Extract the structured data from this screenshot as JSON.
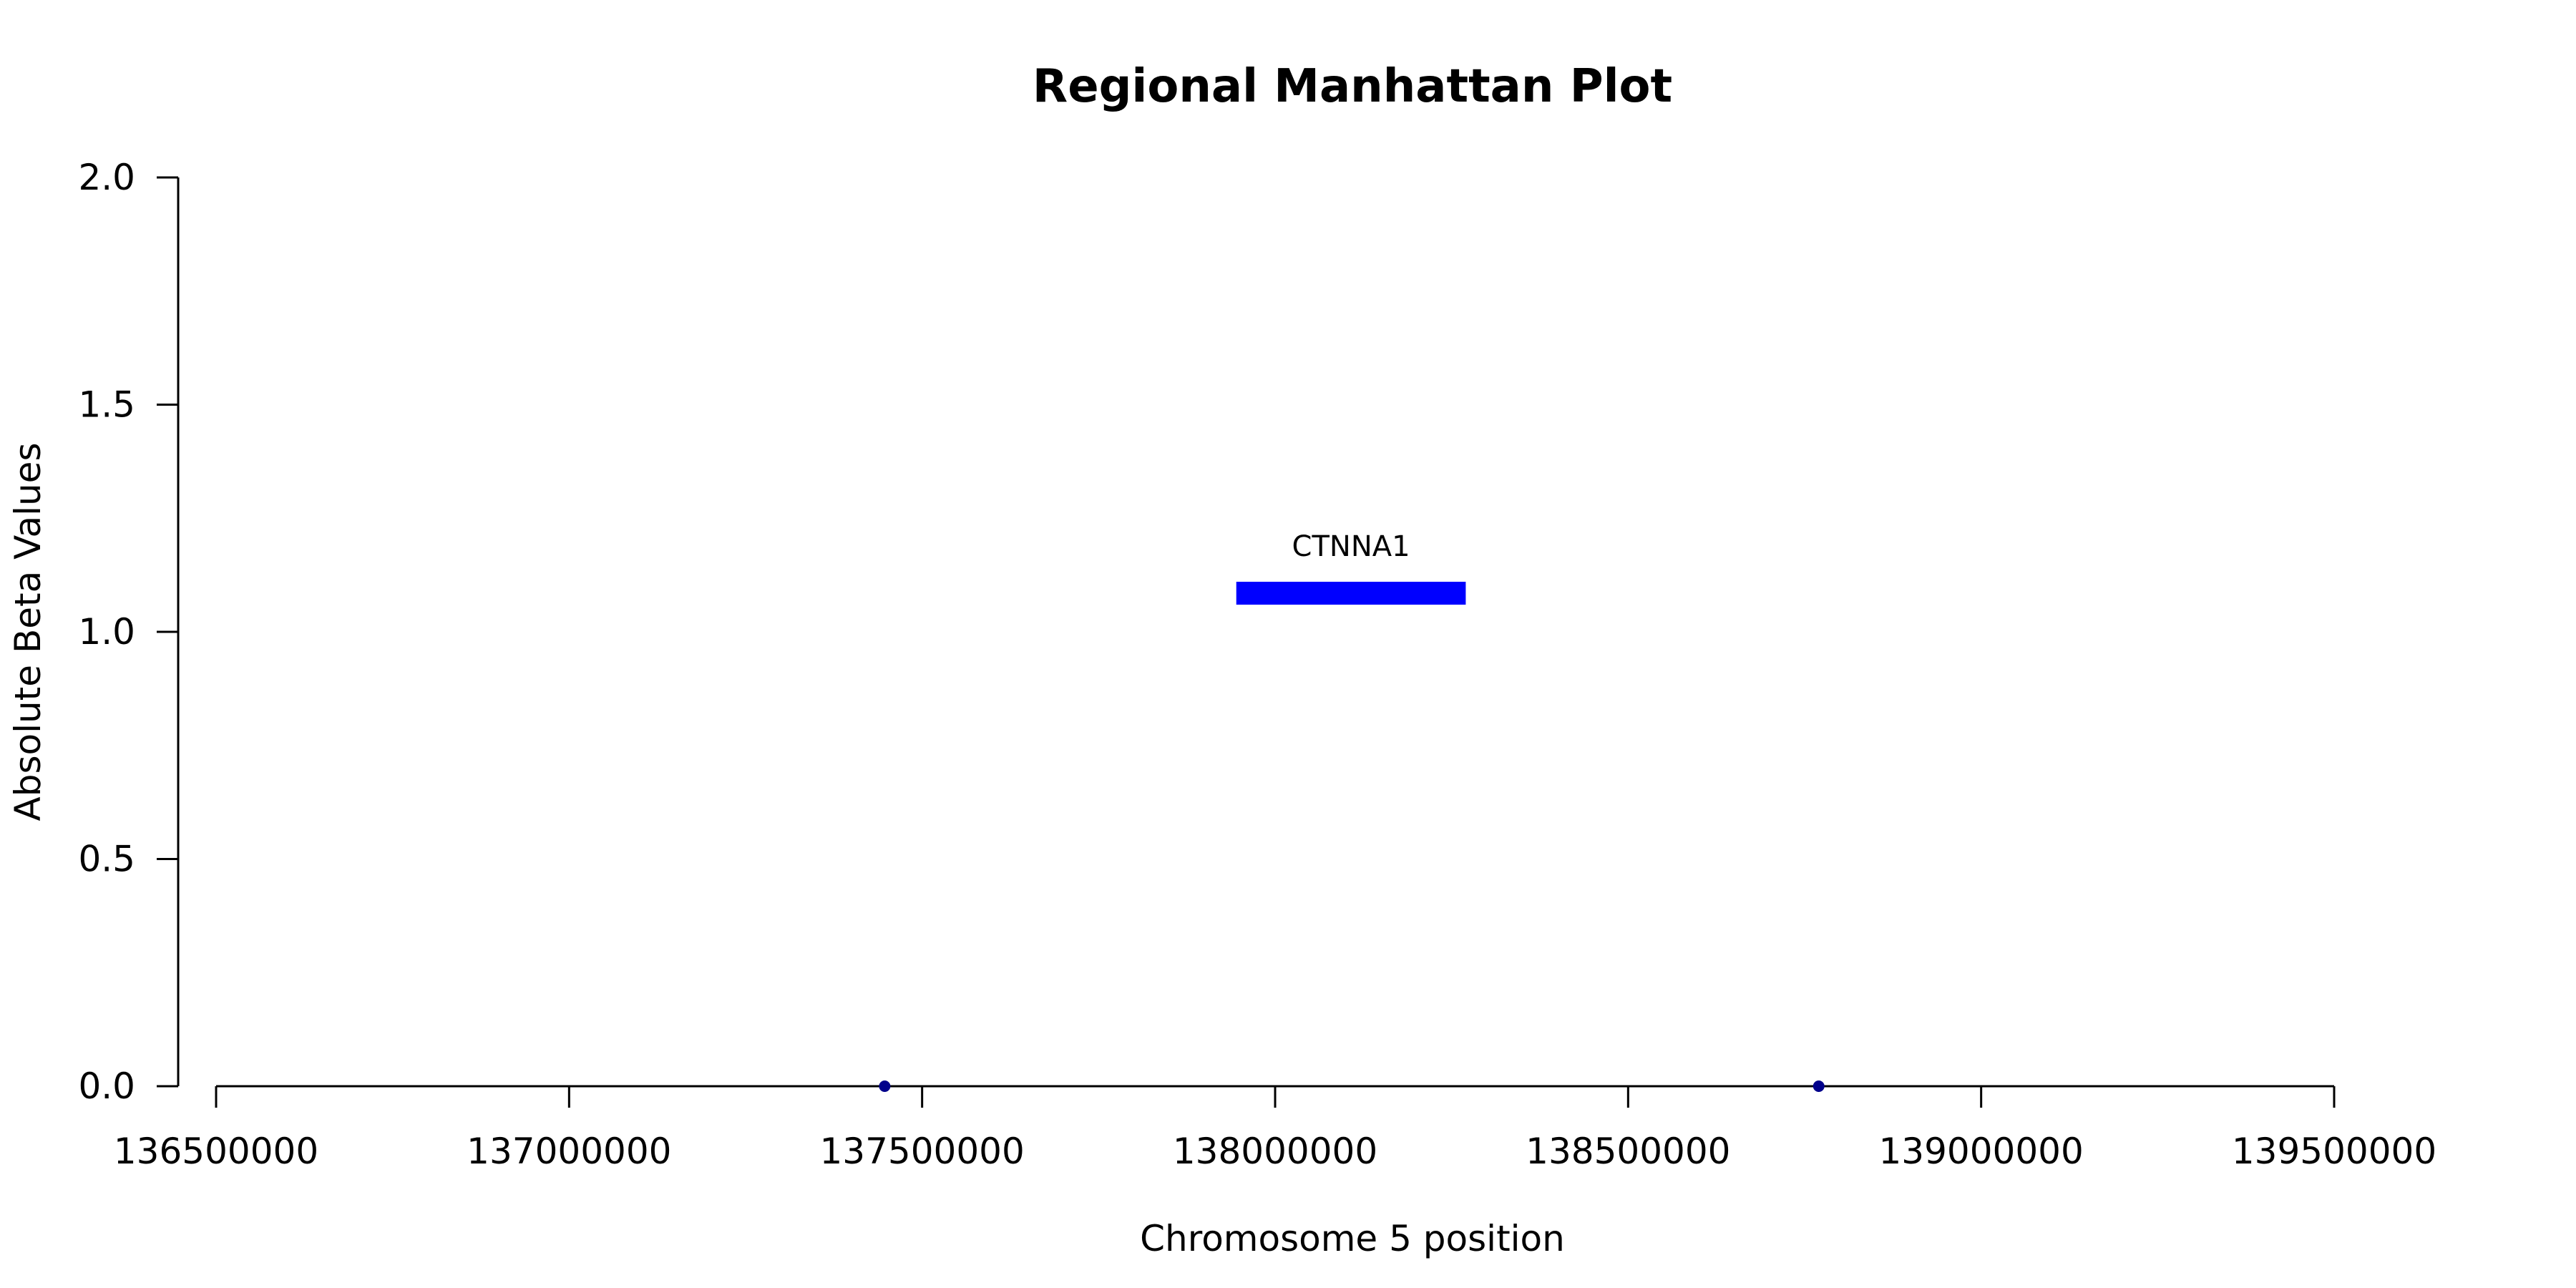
{
  "chart_data": {
    "type": "scatter",
    "title": "Regional Manhattan Plot",
    "xlabel": "Chromosome 5 position",
    "ylabel": "Absolute Beta Values",
    "xlim": [
      136500000,
      139500000
    ],
    "ylim": [
      0,
      2
    ],
    "x_ticks": [
      136500000,
      137000000,
      137500000,
      138000000,
      138500000,
      139000000,
      139500000
    ],
    "x_tick_labels": [
      "136500000",
      "137000000",
      "137500000",
      "138000000",
      "138500000",
      "139000000",
      "139500000"
    ],
    "y_ticks": [
      0,
      0.5,
      1,
      1.5,
      2
    ],
    "y_tick_labels": [
      "0.0",
      "0.5",
      "1.0",
      "1.5",
      "2.0"
    ],
    "grid": false,
    "points": [
      {
        "x": 137447000,
        "y": 0
      },
      {
        "x": 138770000,
        "y": 0
      }
    ],
    "point_color": "#00008b",
    "genes": [
      {
        "name": "CTNNA1",
        "start": 137945000,
        "end": 138270000,
        "y": 1.085,
        "color": "#0000ff"
      }
    ]
  }
}
